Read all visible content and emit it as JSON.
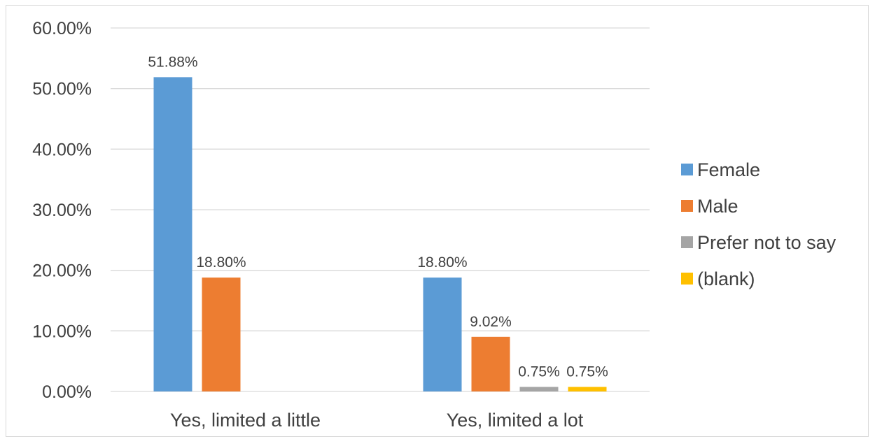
{
  "chart_data": {
    "type": "bar",
    "categories": [
      "Yes, limited a little",
      "Yes, limited a lot"
    ],
    "series": [
      {
        "name": "Female",
        "color": "#5b9bd5",
        "values": [
          51.88,
          18.8
        ],
        "labels": [
          "51.88%",
          "18.80%"
        ]
      },
      {
        "name": "Male",
        "color": "#ed7d31",
        "values": [
          18.8,
          9.02
        ],
        "labels": [
          "18.80%",
          "9.02%"
        ]
      },
      {
        "name": "Prefer not to say",
        "color": "#a5a5a5",
        "values": [
          null,
          0.75
        ],
        "labels": [
          null,
          "0.75%"
        ]
      },
      {
        "name": "(blank)",
        "color": "#ffc000",
        "values": [
          null,
          0.75
        ],
        "labels": [
          null,
          "0.75%"
        ]
      }
    ],
    "ylim": [
      0,
      60
    ],
    "yticks": [
      0,
      10,
      20,
      30,
      40,
      50,
      60
    ],
    "ytick_labels": [
      "0.00%",
      "10.00%",
      "20.00%",
      "30.00%",
      "40.00%",
      "50.00%",
      "60.00%"
    ],
    "grid": true,
    "legend_position": "right",
    "title": "",
    "xlabel": "",
    "ylabel": ""
  }
}
